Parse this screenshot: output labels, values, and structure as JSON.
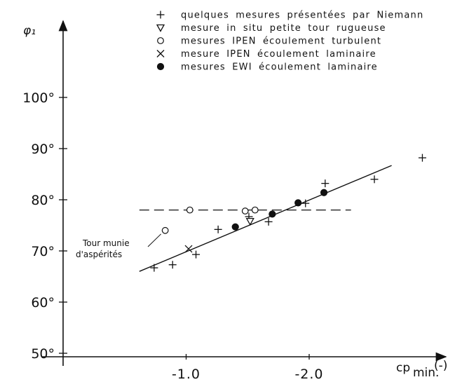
{
  "chart_data": {
    "type": "scatter",
    "ylabel": "φ₁",
    "xlabel": "cp min.(-)",
    "xlabel_main": "cp",
    "xlabel_sub": "min.",
    "xlabel_unit": "(-)",
    "xlim": [
      -0.25,
      -2.95
    ],
    "ylim": [
      50,
      100
    ],
    "x_ticks": [
      {
        "value": -1.0,
        "label": "-1.0"
      },
      {
        "value": -2.0,
        "label": "-2.0"
      }
    ],
    "y_ticks": [
      {
        "value": 50,
        "label": "50°"
      },
      {
        "value": 60,
        "label": "60°"
      },
      {
        "value": 70,
        "label": "70°"
      },
      {
        "value": 80,
        "label": "80°"
      },
      {
        "value": 90,
        "label": "90°"
      },
      {
        "value": 100,
        "label": "100°"
      }
    ],
    "legend_position": "top-center",
    "series": [
      {
        "name": "quelques mesures présentées par Niemann",
        "marker": "plus",
        "x": [
          -0.74,
          -0.89,
          -1.08,
          -1.26,
          -1.51,
          -1.67,
          -1.97,
          -2.13,
          -2.53,
          -2.92
        ],
        "y": [
          66.7,
          67.3,
          69.3,
          74.2,
          76.7,
          75.7,
          79.3,
          83.2,
          84.0,
          88.2
        ]
      },
      {
        "name": "mesure in situ petite tour rugueuse",
        "marker": "triangle-down",
        "x": [
          -1.52
        ],
        "y": [
          75.8
        ]
      },
      {
        "name": "mesures IPEN écoulement turbulent",
        "marker": "circle-open",
        "x": [
          -0.83,
          -1.03,
          -1.48,
          -1.56
        ],
        "y": [
          74.0,
          78.0,
          77.8,
          78.0
        ]
      },
      {
        "name": "mesure IPEN écoulement laminaire",
        "marker": "x",
        "x": [
          -1.02
        ],
        "y": [
          70.4
        ]
      },
      {
        "name": "mesures EWI écoulement laminaire",
        "marker": "circle-filled",
        "x": [
          -1.4,
          -1.7,
          -1.91,
          -2.12
        ],
        "y": [
          74.7,
          77.2,
          79.4,
          81.4
        ]
      }
    ],
    "fit_line": {
      "x": [
        -0.62,
        -2.67
      ],
      "y": [
        66.0,
        86.7
      ]
    },
    "reference_line": {
      "style": "dashed",
      "y": 78.0,
      "x": [
        -0.62,
        -2.34
      ]
    },
    "annotation": {
      "lines": [
        "Tour munie",
        "d'aspérités"
      ],
      "target": {
        "x": -0.83,
        "y": 74.0
      }
    }
  }
}
